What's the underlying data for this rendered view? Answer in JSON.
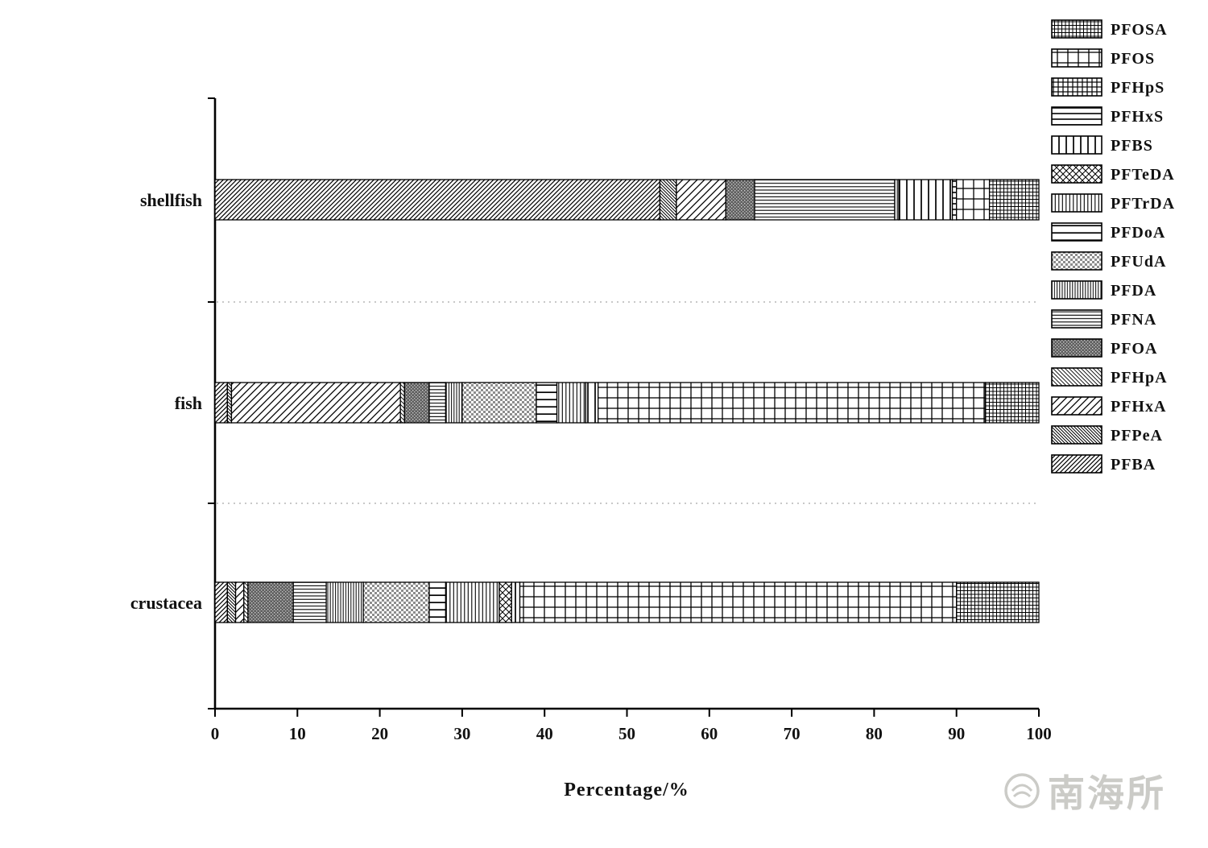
{
  "figure": {
    "background": "#ffffff"
  },
  "watermark": {
    "text": "南海所"
  },
  "chart_data": {
    "type": "bar",
    "orientation": "horizontal",
    "stacked": true,
    "title": "",
    "xlabel": "Percentage/%",
    "ylabel": "",
    "xlim": [
      0,
      100
    ],
    "x_ticks": [
      0,
      10,
      20,
      30,
      40,
      50,
      60,
      70,
      80,
      90,
      100
    ],
    "grid": false,
    "legend_position": "top-right",
    "categories": [
      "shellfish",
      "fish",
      "crustacea"
    ],
    "legend_order": [
      "PFOSA",
      "PFOS",
      "PFHpS",
      "PFHxS",
      "PFBS",
      "PFTeDA",
      "PFTrDA",
      "PFDoA",
      "PFUdA",
      "PFDA",
      "PFNA",
      "PFOA",
      "PFHpA",
      "PFHxA",
      "PFPeA",
      "PFBA"
    ],
    "series": [
      {
        "name": "PFBA",
        "pattern": "diag-fwd-dense",
        "values": {
          "shellfish": 54,
          "fish": 1.5,
          "crustacea": 1.5
        }
      },
      {
        "name": "PFPeA",
        "pattern": "diag-back-dense",
        "values": {
          "shellfish": 2,
          "fish": 0.5,
          "crustacea": 1
        }
      },
      {
        "name": "PFHxA",
        "pattern": "diag-fwd-coarse",
        "values": {
          "shellfish": 6,
          "fish": 20.5,
          "crustacea": 1
        }
      },
      {
        "name": "PFHpA",
        "pattern": "diag-back-fine",
        "values": {
          "shellfish": 0,
          "fish": 0.5,
          "crustacea": 0.5
        }
      },
      {
        "name": "PFOA",
        "pattern": "dots-dark",
        "values": {
          "shellfish": 3.5,
          "fish": 3,
          "crustacea": 5.5
        }
      },
      {
        "name": "PFNA",
        "pattern": "horiz-fine",
        "values": {
          "shellfish": 17,
          "fish": 2,
          "crustacea": 4
        }
      },
      {
        "name": "PFDA",
        "pattern": "vert-fine",
        "values": {
          "shellfish": 0.5,
          "fish": 2,
          "crustacea": 4.5
        }
      },
      {
        "name": "PFUdA",
        "pattern": "checker-gray",
        "values": {
          "shellfish": 0,
          "fish": 9,
          "crustacea": 8
        }
      },
      {
        "name": "PFDoA",
        "pattern": "horiz-sparse",
        "values": {
          "shellfish": 0,
          "fish": 2.5,
          "crustacea": 2
        }
      },
      {
        "name": "PFTrDA",
        "pattern": "vert-med",
        "values": {
          "shellfish": 0,
          "fish": 3.5,
          "crustacea": 6.5
        }
      },
      {
        "name": "PFTeDA",
        "pattern": "cross-diag",
        "values": {
          "shellfish": 0,
          "fish": 0,
          "crustacea": 1.5
        }
      },
      {
        "name": "PFBS",
        "pattern": "vert-coarse",
        "values": {
          "shellfish": 6.5,
          "fish": 1.5,
          "crustacea": 1
        }
      },
      {
        "name": "PFHxS",
        "pattern": "horiz-med",
        "values": {
          "shellfish": 0.5,
          "fish": 0,
          "crustacea": 0
        }
      },
      {
        "name": "PFHpS",
        "pattern": "grid-med",
        "values": {
          "shellfish": 0,
          "fish": 0,
          "crustacea": 0
        }
      },
      {
        "name": "PFOS",
        "pattern": "grid-large",
        "values": {
          "shellfish": 4,
          "fish": 47,
          "crustacea": 53
        }
      },
      {
        "name": "PFOSA",
        "pattern": "grid-fine",
        "values": {
          "shellfish": 6,
          "fish": 6.5,
          "crustacea": 10
        }
      }
    ]
  }
}
